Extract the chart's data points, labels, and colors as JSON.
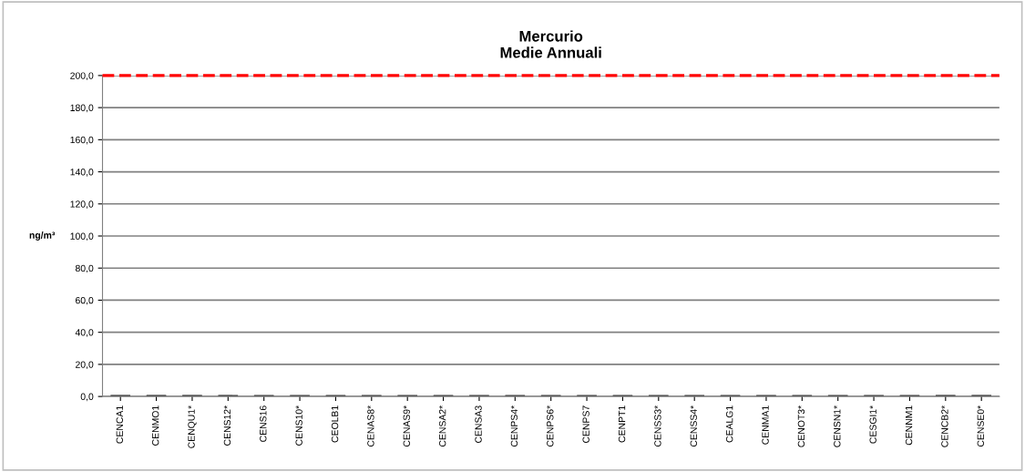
{
  "chart_data": {
    "type": "bar",
    "title": "Mercurio\nMedie Annuali",
    "ylabel": "ng/m³",
    "categories": [
      "CENCA1",
      "CENMO1",
      "CENQU1*",
      "CENS12*",
      "CENS16",
      "CENS10*",
      "CEOLB1",
      "CENAS8*",
      "CENAS9*",
      "CENSA2*",
      "CENSA3",
      "CENPS4*",
      "CENPS6*",
      "CENPS7",
      "CENPT1",
      "CENSS3*",
      "CENSS4*",
      "CEALG1",
      "CENMA1",
      "CENOT3*",
      "CENSN1*",
      "CESGI1*",
      "CENNM1",
      "CENCB2*",
      "CENSE0*"
    ],
    "values": [
      1,
      1,
      1,
      1,
      1,
      1,
      1,
      1,
      1,
      1,
      1,
      1,
      1,
      1,
      1,
      1,
      1,
      1,
      1,
      1,
      1,
      1,
      1,
      1,
      1
    ],
    "color": "#595959",
    "ylim": [
      0,
      200
    ],
    "yticks": [
      {
        "value": 0,
        "label": "0,0"
      },
      {
        "value": 20,
        "label": "20,0"
      },
      {
        "value": 40,
        "label": "40,0"
      },
      {
        "value": 60,
        "label": "60,0"
      },
      {
        "value": 80,
        "label": "80,0"
      },
      {
        "value": 100,
        "label": "100,0"
      },
      {
        "value": 120,
        "label": "120,0"
      },
      {
        "value": 140,
        "label": "140,0"
      },
      {
        "value": 160,
        "label": "160,0"
      },
      {
        "value": 180,
        "label": "180,0"
      },
      {
        "value": 200,
        "label": "200,0"
      }
    ],
    "grid": "y",
    "ref_lines": [
      {
        "axis": "y",
        "value": 200,
        "label": null,
        "color": "#ff0000",
        "line_style": "dashed"
      }
    ]
  }
}
